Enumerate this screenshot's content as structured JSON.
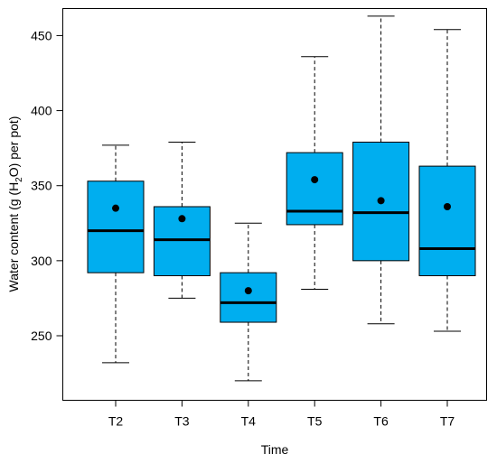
{
  "chart_data": {
    "type": "boxplot",
    "xlabel": "Time",
    "ylabel_parts": [
      "Water content (g (H",
      "2",
      "O) per pot)"
    ],
    "ylim": [
      207,
      468
    ],
    "yticks": [
      250,
      300,
      350,
      400,
      450
    ],
    "box_color": "#00aeef",
    "categories": [
      "T2",
      "T3",
      "T4",
      "T5",
      "T6",
      "T7"
    ],
    "boxes": [
      {
        "label": "T2",
        "min": 232,
        "q1": 292,
        "median": 320,
        "q3": 353,
        "max": 377,
        "mean": 335
      },
      {
        "label": "T3",
        "min": 275,
        "q1": 290,
        "median": 314,
        "q3": 336,
        "max": 379,
        "mean": 328
      },
      {
        "label": "T4",
        "min": 220,
        "q1": 259,
        "median": 272,
        "q3": 292,
        "max": 325,
        "mean": 280
      },
      {
        "label": "T5",
        "min": 281,
        "q1": 324,
        "median": 333,
        "q3": 372,
        "max": 436,
        "mean": 354
      },
      {
        "label": "T6",
        "min": 258,
        "q1": 300,
        "median": 332,
        "q3": 379,
        "max": 463,
        "mean": 340
      },
      {
        "label": "T7",
        "min": 253,
        "q1": 290,
        "median": 308,
        "q3": 363,
        "max": 454,
        "mean": 336
      }
    ]
  }
}
